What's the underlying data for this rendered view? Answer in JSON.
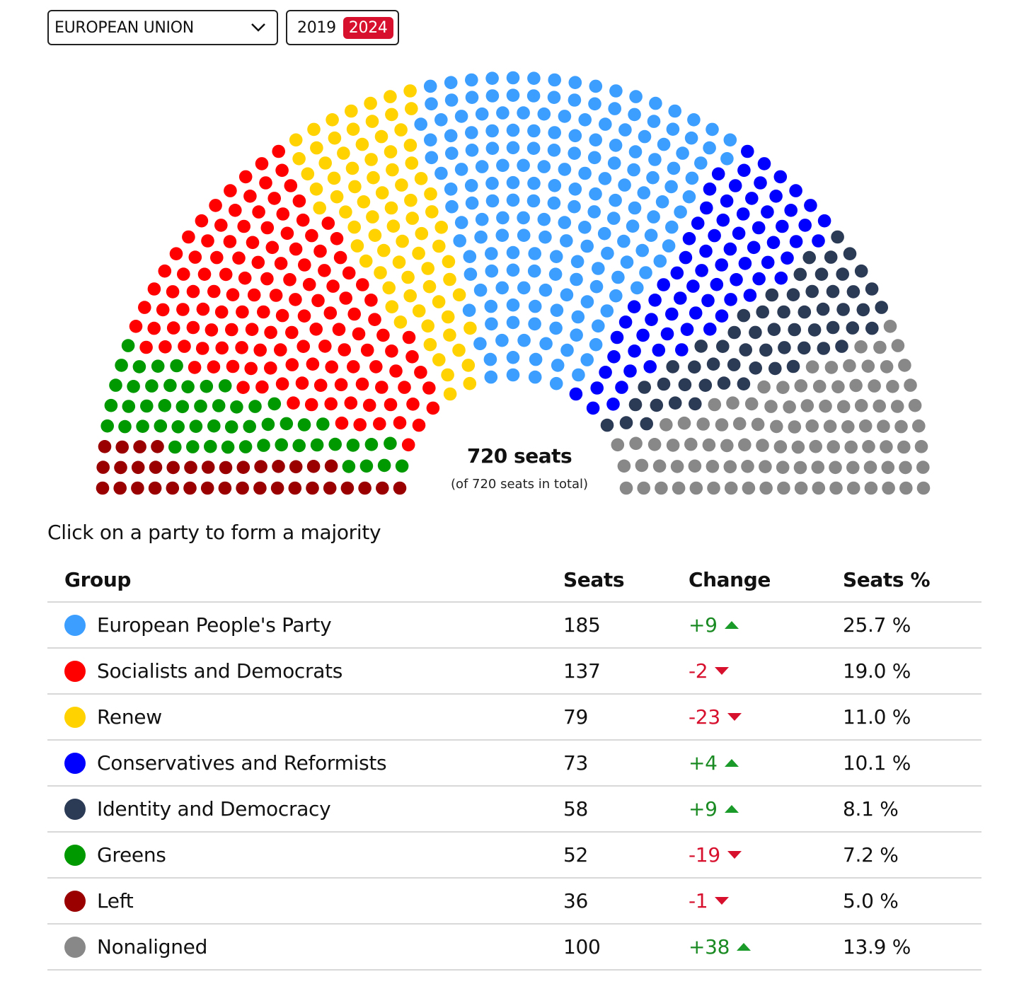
{
  "controls": {
    "region": "EUROPEAN UNION",
    "years": [
      {
        "label": "2019",
        "active": false
      },
      {
        "label": "2024",
        "active": true
      }
    ]
  },
  "summary": {
    "seats": "720 seats",
    "total": "(of 720 seats in total)"
  },
  "prompt": "Click on a party to form a majority",
  "table": {
    "headers": {
      "group": "Group",
      "seats": "Seats",
      "change": "Change",
      "pct": "Seats %"
    },
    "rows": [
      {
        "group": "European People's Party",
        "color": "#3c9eff",
        "seats": "185",
        "change": "+9",
        "direction": "up",
        "pct": "25.7 %"
      },
      {
        "group": "Socialists and Democrats",
        "color": "#ff0000",
        "seats": "137",
        "change": "-2",
        "direction": "down",
        "pct": "19.0 %"
      },
      {
        "group": "Renew",
        "color": "#ffd200",
        "seats": "79",
        "change": "-23",
        "direction": "down",
        "pct": "11.0 %"
      },
      {
        "group": "Conservatives and Reformists",
        "color": "#0000ff",
        "seats": "73",
        "change": "+4",
        "direction": "up",
        "pct": "10.1 %"
      },
      {
        "group": "Identity and Democracy",
        "color": "#2b3a55",
        "seats": "58",
        "change": "+9",
        "direction": "up",
        "pct": "8.1 %"
      },
      {
        "group": "Greens",
        "color": "#009a00",
        "seats": "52",
        "change": "-19",
        "direction": "down",
        "pct": "7.2 %"
      },
      {
        "group": "Left",
        "color": "#9a0000",
        "seats": "36",
        "change": "-1",
        "direction": "down",
        "pct": "5.0 %"
      },
      {
        "group": "Nonaligned",
        "color": "#888888",
        "seats": "100",
        "change": "+38",
        "direction": "up",
        "pct": "13.9 %"
      }
    ]
  },
  "chart_data": {
    "type": "parliament",
    "total_seats": 720,
    "order_left_to_right": [
      "Left",
      "Greens",
      "Socialists and Democrats",
      "Renew",
      "European People's Party",
      "Conservatives and Reformists",
      "Identity and Democracy",
      "Nonaligned"
    ],
    "series": [
      {
        "name": "European People's Party",
        "value": 185,
        "change": 9,
        "color": "#3c9eff"
      },
      {
        "name": "Socialists and Democrats",
        "value": 137,
        "change": -2,
        "color": "#ff0000"
      },
      {
        "name": "Renew",
        "value": 79,
        "change": -23,
        "color": "#ffd200"
      },
      {
        "name": "Conservatives and Reformists",
        "value": 73,
        "change": 4,
        "color": "#0000ff"
      },
      {
        "name": "Identity and Democracy",
        "value": 58,
        "change": 9,
        "color": "#2b3a55"
      },
      {
        "name": "Greens",
        "value": 52,
        "change": -19,
        "color": "#009a00"
      },
      {
        "name": "Left",
        "value": 36,
        "change": -1,
        "color": "#9a0000"
      },
      {
        "name": "Nonaligned",
        "value": 100,
        "change": 38,
        "color": "#888888"
      }
    ]
  }
}
